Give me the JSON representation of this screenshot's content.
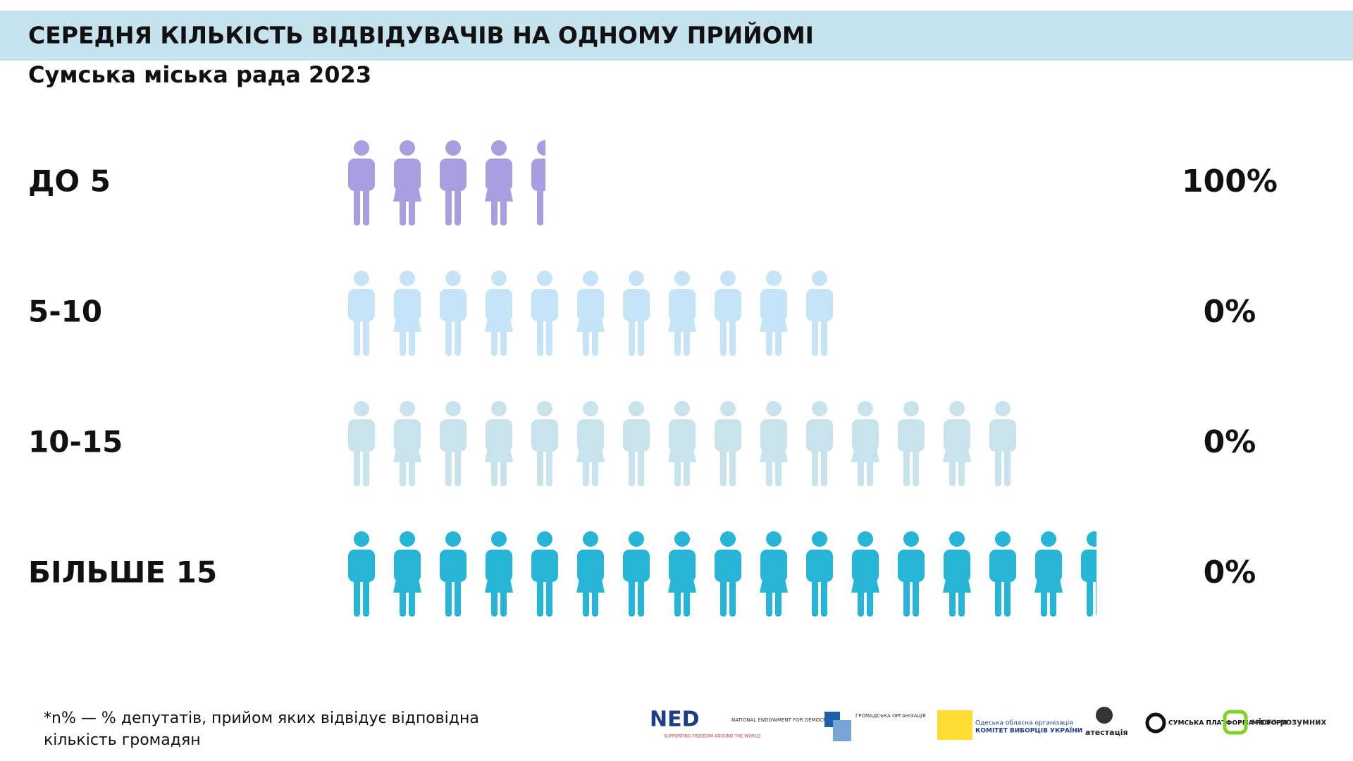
{
  "header": {
    "title": "СЕРЕДНЯ КІЛЬКІСТЬ ВІДВІДУВАЧІВ  НА ОДНОМУ ПРИЙОМІ",
    "subtitle": "Сумська міська рада 2023"
  },
  "rows": [
    {
      "label": "ДО 5",
      "value": "100%"
    },
    {
      "label": "5-10",
      "value": "0%"
    },
    {
      "label": "10-15",
      "value": "0%"
    },
    {
      "label": "БІЛЬШЕ 15",
      "value": "0%"
    }
  ],
  "footnote": [
    "*n% — % депутатів, прийом яких відвідує відповідна",
    "кількість громадян"
  ],
  "logos": {
    "ned": "NED",
    "ned_name": "NATIONAL ENDOWMENT FOR DEMOCRACY",
    "ned_tagline": "SUPPORTING FREEDOM AROUND THE WORLD",
    "ngo": "ГРОМАДСЬКА ОРГАНІЗАЦІЯ",
    "kvu1": "Одеська обласна організація",
    "kvu2": "КОМІТЕТ ВИБОРЦІВ УКРАЇНИ",
    "atest": "атестація",
    "spr": "СУМСЬКА ПЛАТФОРМА РЕФОРМ",
    "misto": "місто розумних"
  }
}
